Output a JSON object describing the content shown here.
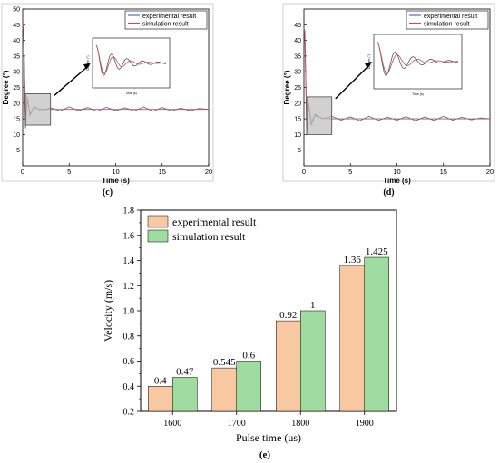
{
  "panels": {
    "c": {
      "label": "(c)",
      "xlabel": "Time (s)",
      "ylabel": "Degree (°)",
      "xticks": [
        "0",
        "5",
        "10",
        "15",
        "20"
      ],
      "yticks": [
        "5",
        "10",
        "15",
        "20",
        "25",
        "30",
        "35",
        "40",
        "45",
        "50"
      ],
      "legend": [
        "experimental result",
        "simulation result"
      ],
      "inset_xlabel": "Time (s)",
      "inset_ylabel": "Degree (°)"
    },
    "d": {
      "label": "(d)",
      "xlabel": "Time (s)",
      "ylabel": "Degree (°)",
      "xticks": [
        "0",
        "5",
        "10",
        "15",
        "20"
      ],
      "yticks": [
        "5",
        "10",
        "15",
        "20",
        "25",
        "30",
        "35",
        "40",
        "45"
      ],
      "legend": [
        "experimental result",
        "simulation result"
      ],
      "inset_xlabel": "Time (s)",
      "inset_ylabel": "Degree (°)"
    },
    "e": {
      "label": "(e)"
    }
  },
  "colors": {
    "experimental_line": "#4f6fb8",
    "simulation_line": "#c0504d",
    "experimental_bar": "#f8c9a0",
    "simulation_bar": "#9fdc9f"
  },
  "chart_data": [
    {
      "type": "line",
      "panel": "c",
      "xlabel": "Time (s)",
      "ylabel": "Degree (°)",
      "xlim": [
        0,
        20
      ],
      "ylim": [
        0,
        50
      ],
      "series": [
        {
          "name": "experimental result",
          "x": [
            0,
            0.1,
            0.2,
            0.3,
            0.5,
            0.8,
            1.2,
            2,
            3,
            4,
            5,
            6,
            7,
            8,
            9,
            10,
            11,
            12,
            13,
            14,
            15,
            16,
            17,
            18,
            19,
            20
          ],
          "y": [
            45,
            44,
            30,
            12,
            22,
            16,
            19,
            17.5,
            18.5,
            17.5,
            18.8,
            17.6,
            18.6,
            17.4,
            18.7,
            17.6,
            18.5,
            17.5,
            18.8,
            17.4,
            18.6,
            17.5,
            18.4,
            17.6,
            18.3,
            18
          ]
        },
        {
          "name": "simulation result",
          "x": [
            0,
            0.1,
            0.2,
            0.3,
            0.5,
            0.8,
            1.2,
            2,
            3,
            5,
            10,
            15,
            20
          ],
          "y": [
            45,
            43,
            28,
            14,
            21,
            16.5,
            18.5,
            18,
            18,
            18,
            18,
            18,
            18
          ]
        }
      ]
    },
    {
      "type": "line",
      "panel": "d",
      "xlabel": "Time (s)",
      "ylabel": "Degree (°)",
      "xlim": [
        0,
        20
      ],
      "ylim": [
        0,
        50
      ],
      "series": [
        {
          "name": "experimental result",
          "x": [
            0,
            0.1,
            0.2,
            0.3,
            0.5,
            0.8,
            1.2,
            2,
            3,
            4,
            5,
            6,
            7,
            8,
            9,
            10,
            11,
            12,
            13,
            14,
            15,
            16,
            17,
            18,
            19,
            20
          ],
          "y": [
            44,
            43,
            28,
            10,
            20,
            13,
            16.5,
            15,
            15.8,
            14.6,
            15.6,
            14.4,
            15.8,
            14.5,
            15.5,
            14.6,
            15.7,
            14.4,
            15.6,
            14.5,
            15.8,
            14.6,
            15.5,
            14.7,
            15.3,
            15
          ]
        },
        {
          "name": "simulation result",
          "x": [
            0,
            0.1,
            0.2,
            0.3,
            0.5,
            0.8,
            1.2,
            2,
            3,
            5,
            10,
            15,
            20
          ],
          "y": [
            44,
            42,
            27,
            12,
            19,
            14,
            16,
            15.2,
            15,
            15,
            15,
            15,
            15
          ]
        }
      ]
    },
    {
      "type": "bar",
      "panel": "e",
      "xlabel": "Pulse time (us)",
      "ylabel": "Velocity (m/s)",
      "categories": [
        "1600",
        "1700",
        "1800",
        "1900"
      ],
      "ylim": [
        0.2,
        1.8
      ],
      "yticks": [
        "0.2",
        "0.4",
        "0.6",
        "0.8",
        "1.0",
        "1.2",
        "1.4",
        "1.6",
        "1.8"
      ],
      "series": [
        {
          "name": "experimental result",
          "values": [
            0.4,
            0.545,
            0.92,
            1.36
          ],
          "labels": [
            "0.4",
            "0.545",
            "0.92",
            "1.36"
          ]
        },
        {
          "name": "simulation result",
          "values": [
            0.47,
            0.6,
            1.0,
            1.425
          ],
          "labels": [
            "0.47",
            "0.6",
            "1",
            "1.425"
          ]
        }
      ],
      "legend_position": "top-left"
    }
  ]
}
